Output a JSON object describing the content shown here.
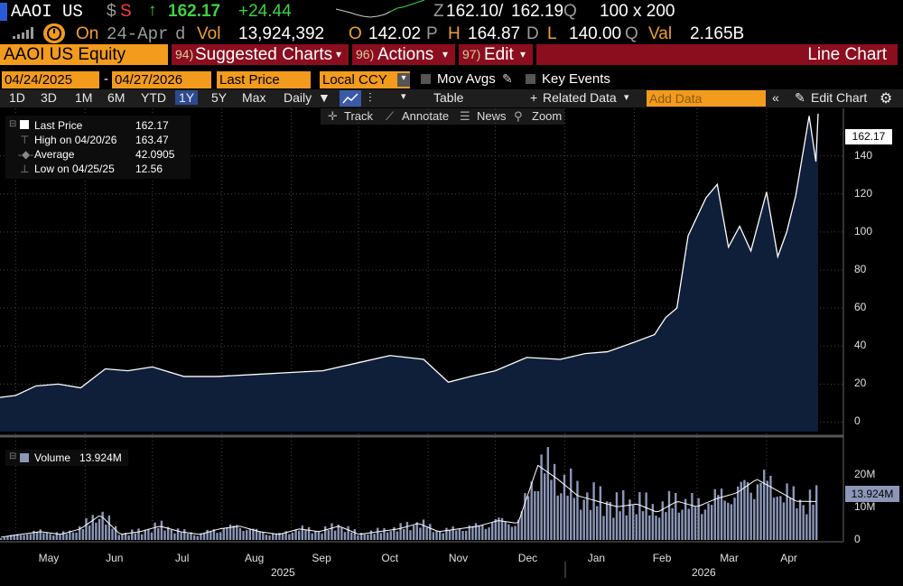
{
  "header": {
    "ticker": "AAOI US",
    "currency_symbol": "$",
    "status_flag": "S",
    "arrow": "↑",
    "last_price": "162.17",
    "change": "+24.44",
    "z_label": "Z",
    "bid": "162.10",
    "slash": "/",
    "ask": "162.19",
    "q_label": "Q",
    "size": "100 x 200",
    "on_label": "On",
    "date": "24-Apr",
    "d_label": "d",
    "vol_label": "Vol",
    "vol_value": "13,924,392",
    "o_label": "O",
    "open": "142.02",
    "p_label": "P",
    "h_label": "H",
    "high": "164.87",
    "d2_label": "D",
    "l_label": "L",
    "low": "140.00",
    "q2_label": "Q",
    "val_label": "Val",
    "val_value": "2.165B",
    "security": "AAOI US Equity",
    "menu1_num": "94)",
    "menu1": "Suggested Charts",
    "menu2_num": "96)",
    "menu2": "Actions",
    "menu3_num": "97)",
    "menu3": "Edit",
    "view_title": "Line Chart",
    "caret": "▾"
  },
  "controls": {
    "start_date": "04/24/2025",
    "dash": "-",
    "end_date": "04/27/2026",
    "field": "Last Price",
    "currency": "Local CCY",
    "mov_avgs": "Mov Avgs",
    "key_events": "Key Events",
    "periods": [
      "1D",
      "3D",
      "1M",
      "6M",
      "YTD",
      "1Y",
      "5Y",
      "Max"
    ],
    "active_period": "1Y",
    "frequency": "Daily",
    "table": "Table",
    "related_data": "Related Data",
    "add_data_placeholder": "Add Data",
    "edit_chart": "Edit Chart",
    "track": "Track",
    "annotate": "Annotate",
    "news": "News",
    "zoom": "Zoom"
  },
  "legend": {
    "price_label": "Last Price",
    "price_value": "162.17",
    "high_label": "High on 04/20/26",
    "high_value": "163.47",
    "avg_label": "Average",
    "avg_value": "42.0905",
    "low_label": "Low on 04/25/25",
    "low_value": "12.56",
    "volume_label": "Volume",
    "volume_value": "13.924M"
  },
  "colors": {
    "accent": "#f29b1d",
    "up": "#3fd13f",
    "menu_bar": "#8a0e1e",
    "area_fill": "#0f1f3a",
    "volume_bar": "#8c97b8"
  },
  "chart_data": [
    {
      "type": "area",
      "title": "",
      "series": [
        {
          "name": "Last Price",
          "x": [
            "2025-04-24",
            "2025-05-01",
            "2025-05-10",
            "2025-05-20",
            "2025-05-30",
            "2025-06-10",
            "2025-06-20",
            "2025-07-01",
            "2025-07-15",
            "2025-07-30",
            "2025-08-15",
            "2025-08-30",
            "2025-09-15",
            "2025-09-30",
            "2025-10-15",
            "2025-10-30",
            "2025-11-10",
            "2025-11-20",
            "2025-12-01",
            "2025-12-15",
            "2025-12-30",
            "2026-01-10",
            "2026-01-20",
            "2026-02-01",
            "2026-02-10",
            "2026-02-15",
            "2026-02-20",
            "2026-02-25",
            "2026-03-01",
            "2026-03-05",
            "2026-03-10",
            "2026-03-15",
            "2026-03-20",
            "2026-03-25",
            "2026-04-01",
            "2026-04-06",
            "2026-04-10",
            "2026-04-14",
            "2026-04-17",
            "2026-04-20",
            "2026-04-23",
            "2026-04-24"
          ],
          "y": [
            13,
            14,
            19,
            20,
            18,
            28,
            27,
            29,
            24,
            24,
            25,
            26,
            27,
            31,
            35,
            33,
            21,
            24,
            27,
            34,
            33,
            36,
            37,
            42,
            46,
            55,
            60,
            98,
            108,
            118,
            125,
            92,
            103,
            90,
            121,
            87,
            100,
            119,
            140,
            161,
            137,
            162.17
          ]
        }
      ],
      "ylim": [
        -5,
        165
      ],
      "yticks": [
        0,
        20,
        40,
        60,
        80,
        100,
        120,
        140
      ],
      "last_label": "162.17",
      "grid": true
    },
    {
      "type": "bar",
      "title": "",
      "series": [
        {
          "name": "Volume",
          "approx_values_millions": [
            1,
            2,
            3,
            2,
            4,
            9,
            2,
            3,
            5,
            3,
            2,
            4,
            5,
            3,
            2,
            4,
            3,
            5,
            2,
            3,
            4,
            6,
            3,
            4,
            5,
            7,
            6,
            27,
            22,
            16,
            14,
            12,
            13,
            10,
            14,
            12,
            15,
            17,
            22,
            18,
            14,
            13.924
          ]
        }
      ],
      "ylim": [
        0,
        30
      ],
      "ytick_labels": [
        "0",
        "10M",
        "20M"
      ],
      "last_label": "13.924M"
    }
  ],
  "xaxis": {
    "months": [
      "May",
      "Jun",
      "Jul",
      "Aug",
      "Sep",
      "Oct",
      "Nov",
      "Dec",
      "Jan",
      "Feb",
      "Mar",
      "Apr"
    ],
    "year1": "2025",
    "year2": "2026"
  }
}
